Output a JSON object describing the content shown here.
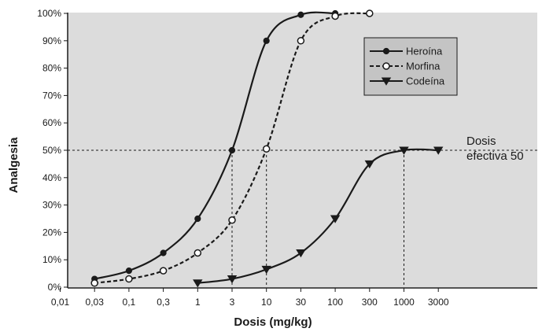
{
  "chart_data": {
    "type": "line",
    "xlabel": "Dosis (mg/kg)",
    "ylabel": "Analgesia",
    "x_scale": "log",
    "x_ticks": [
      {
        "value": 0.01,
        "label": "0,01"
      },
      {
        "value": 0.03,
        "label": "0,03"
      },
      {
        "value": 0.1,
        "label": "0,1"
      },
      {
        "value": 0.3,
        "label": "0,3"
      },
      {
        "value": 1,
        "label": "1"
      },
      {
        "value": 3,
        "label": "3"
      },
      {
        "value": 10,
        "label": "10"
      },
      {
        "value": 30,
        "label": "30"
      },
      {
        "value": 100,
        "label": "100"
      },
      {
        "value": 300,
        "label": "300"
      },
      {
        "value": 1000,
        "label": "1000"
      },
      {
        "value": 3000,
        "label": "3000"
      }
    ],
    "y_ticks": [
      {
        "value": 0,
        "label": "0%"
      },
      {
        "value": 10,
        "label": "10%"
      },
      {
        "value": 20,
        "label": "20%"
      },
      {
        "value": 30,
        "label": "30%"
      },
      {
        "value": 40,
        "label": "40%"
      },
      {
        "value": 50,
        "label": "50%"
      },
      {
        "value": 60,
        "label": "60%"
      },
      {
        "value": 70,
        "label": "70%"
      },
      {
        "value": 80,
        "label": "80%"
      },
      {
        "value": 90,
        "label": "90%"
      },
      {
        "value": 100,
        "label": "100%"
      }
    ],
    "ylim": [
      0,
      100
    ],
    "grid": false,
    "legend_position": "top-right",
    "colors": {
      "plot_background": "#dcdcdc",
      "lines": "#1a1a1a"
    },
    "series": [
      {
        "name": "Heroína",
        "marker": "filled-circle",
        "line_style": "solid",
        "x": [
          0.03,
          0.1,
          0.3,
          1,
          3,
          10,
          30,
          100
        ],
        "y": [
          3,
          6,
          12.5,
          25,
          50,
          90,
          99.5,
          100
        ]
      },
      {
        "name": "Morfina",
        "marker": "open-circle",
        "line_style": "dashed",
        "x": [
          0.03,
          0.1,
          0.3,
          1,
          3,
          10,
          30,
          100,
          300
        ],
        "y": [
          1.5,
          3,
          6,
          12.5,
          24.5,
          50.5,
          90,
          99,
          100
        ]
      },
      {
        "name": "Codeína",
        "marker": "filled-triangle-down",
        "line_style": "solid",
        "x": [
          1,
          3,
          10,
          30,
          100,
          300,
          1000,
          3000
        ],
        "y": [
          1.5,
          3,
          6.5,
          12.5,
          25,
          45,
          50,
          50
        ]
      }
    ],
    "reference_line": {
      "y": 50,
      "style": "dashed",
      "label_lines": [
        "Dosis",
        "efectiva 50"
      ]
    },
    "drop_lines_x": [
      3,
      10,
      1000
    ]
  }
}
